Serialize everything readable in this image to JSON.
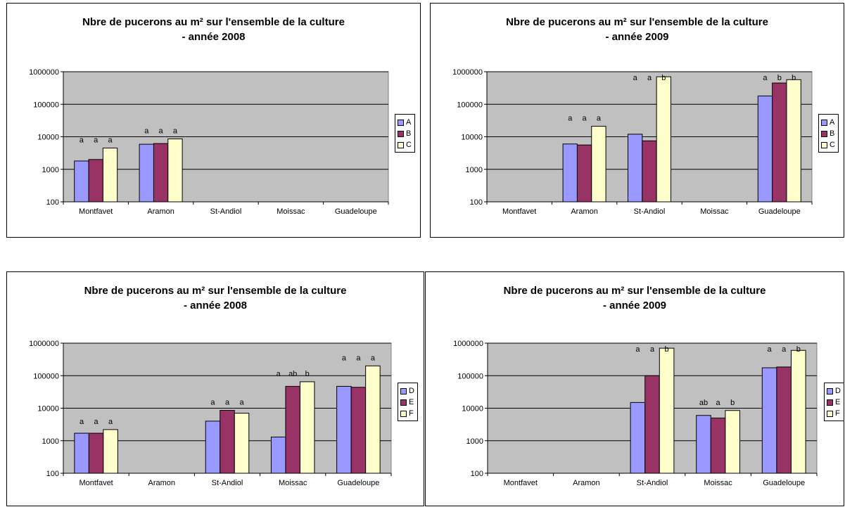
{
  "colors": {
    "plot_bg": "#C0C0C0",
    "series": [
      "#9999FF",
      "#993366",
      "#FFFFCC"
    ]
  },
  "chart_data": [
    {
      "type": "bar",
      "title_lines": [
        "Nbre de pucerons au m² sur l'ensemble de la culture",
        "- année 2008"
      ],
      "categories": [
        "Montfavet",
        "Aramon",
        "St-Andiol",
        "Moissac",
        "Guadeloupe"
      ],
      "y_scale": "log",
      "ylim": [
        100,
        1000000
      ],
      "yticks": [
        "100",
        "1000",
        "10000",
        "100000",
        "1000000"
      ],
      "grid": true,
      "legend_position": "right",
      "series": [
        {
          "name": "A",
          "values": [
            1800,
            5900,
            null,
            null,
            null
          ],
          "letters": [
            "a",
            "a",
            "",
            "",
            ""
          ]
        },
        {
          "name": "B",
          "values": [
            2000,
            6200,
            null,
            null,
            null
          ],
          "letters": [
            "a",
            "a",
            "",
            "",
            ""
          ]
        },
        {
          "name": "C",
          "values": [
            4500,
            8600,
            null,
            null,
            null
          ],
          "letters": [
            "a",
            "a",
            "",
            "",
            ""
          ]
        }
      ]
    },
    {
      "type": "bar",
      "title_lines": [
        "Nbre de pucerons au m² sur l'ensemble de la culture",
        "- année 2009"
      ],
      "categories": [
        "Montfavet",
        "Aramon",
        "St-Andiol",
        "Moissac",
        "Guadeloupe"
      ],
      "y_scale": "log",
      "ylim": [
        100,
        1000000
      ],
      "yticks": [
        "100",
        "1000",
        "10000",
        "100000",
        "1000000"
      ],
      "grid": true,
      "legend_position": "right",
      "series": [
        {
          "name": "A",
          "values": [
            null,
            6000,
            12000,
            null,
            180000
          ],
          "letters": [
            "",
            "a",
            "a",
            "",
            "a"
          ]
        },
        {
          "name": "B",
          "values": [
            null,
            5600,
            7500,
            null,
            450000
          ],
          "letters": [
            "",
            "a",
            "a",
            "",
            "b"
          ]
        },
        {
          "name": "C",
          "values": [
            null,
            21000,
            700000,
            null,
            570000
          ],
          "letters": [
            "",
            "a",
            "b",
            "",
            "b"
          ]
        }
      ]
    },
    {
      "type": "bar",
      "title_lines": [
        "Nbre de pucerons au m² sur l'ensemble de la culture",
        "- année 2008"
      ],
      "categories": [
        "Montfavet",
        "Aramon",
        "St-Andiol",
        "Moissac",
        "Guadeloupe"
      ],
      "y_scale": "log",
      "ylim": [
        100,
        1000000
      ],
      "yticks": [
        "100",
        "1000",
        "10000",
        "100000",
        "1000000"
      ],
      "grid": true,
      "legend_position": "right",
      "series": [
        {
          "name": "D",
          "values": [
            1700,
            null,
            4000,
            1300,
            47000
          ],
          "letters": [
            "a",
            "",
            "a",
            "a",
            "a"
          ]
        },
        {
          "name": "E",
          "values": [
            1700,
            null,
            8600,
            47000,
            44000
          ],
          "letters": [
            "a",
            "",
            "a",
            "ab",
            "a"
          ]
        },
        {
          "name": "F",
          "values": [
            2200,
            null,
            7000,
            65000,
            200000
          ],
          "letters": [
            "a",
            "",
            "a",
            "b",
            "a"
          ]
        }
      ]
    },
    {
      "type": "bar",
      "title_lines": [
        "Nbre de pucerons au m² sur l'ensemble de la culture",
        "- année 2009"
      ],
      "categories": [
        "Montfavet",
        "Aramon",
        "St-Andiol",
        "Moissac",
        "Guadeloupe"
      ],
      "y_scale": "log",
      "ylim": [
        100,
        1000000
      ],
      "yticks": [
        "100",
        "1000",
        "10000",
        "100000",
        "1000000"
      ],
      "grid": true,
      "legend_position": "right",
      "series": [
        {
          "name": "D",
          "values": [
            null,
            null,
            15000,
            6000,
            175000
          ],
          "letters": [
            "",
            "",
            "a",
            "ab",
            "a"
          ]
        },
        {
          "name": "E",
          "values": [
            null,
            null,
            100000,
            5000,
            185000
          ],
          "letters": [
            "",
            "",
            "a",
            "a",
            "a"
          ]
        },
        {
          "name": "F",
          "values": [
            null,
            null,
            700000,
            8500,
            600000
          ],
          "letters": [
            "",
            "",
            "b",
            "b",
            "b"
          ]
        }
      ]
    }
  ]
}
